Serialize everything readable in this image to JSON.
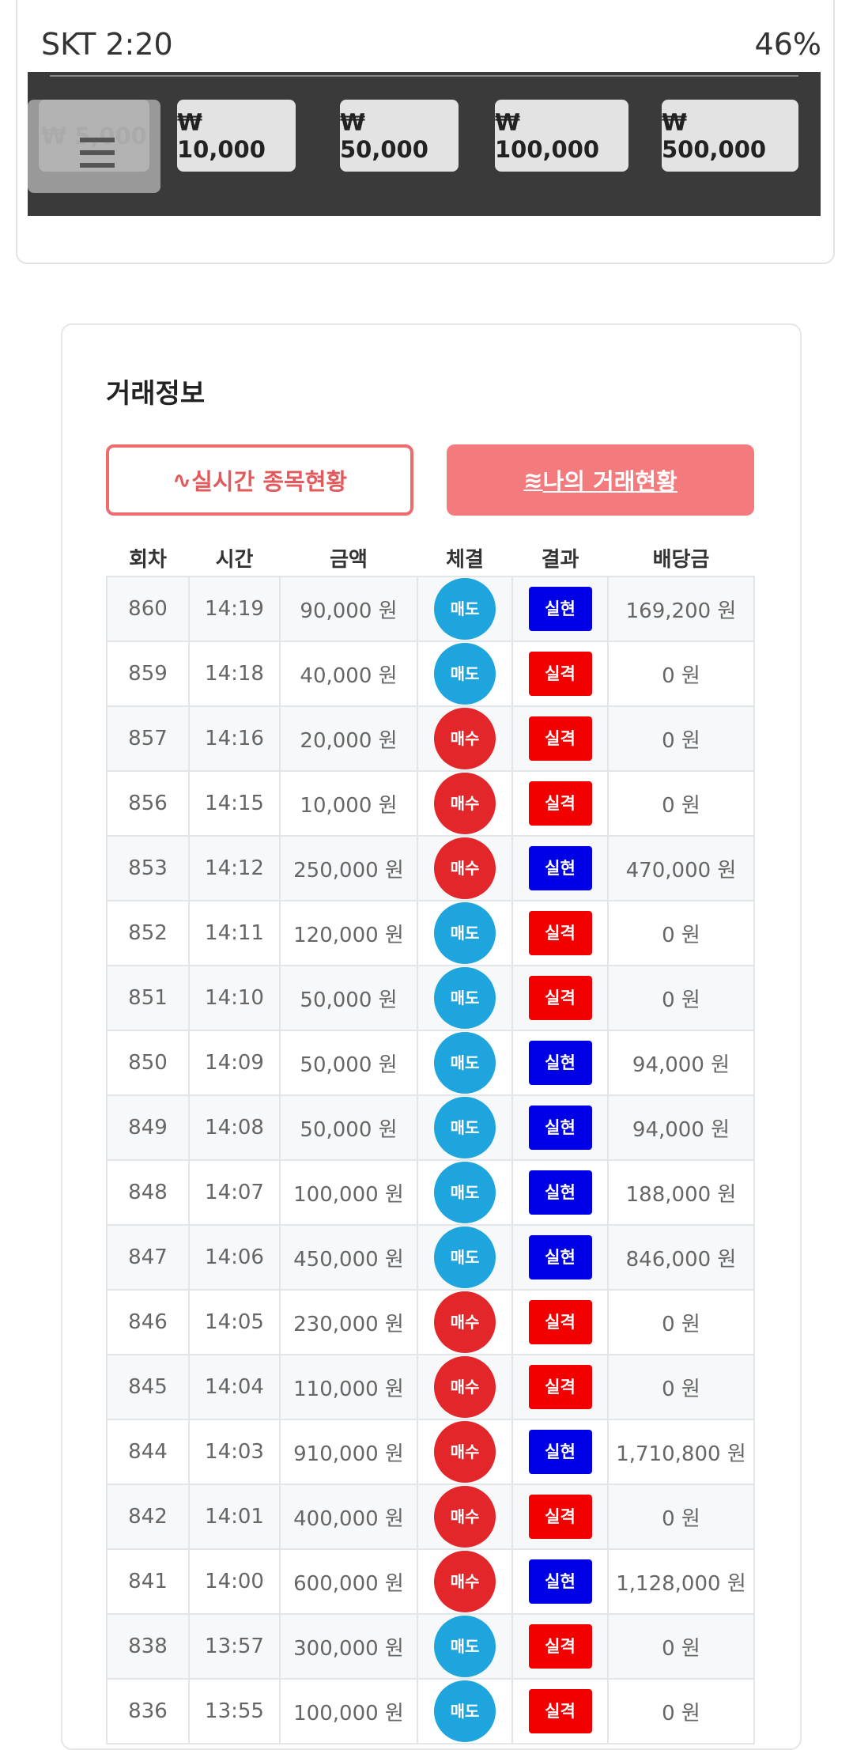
{
  "status_bar": {
    "carrier_time": "SKT 2:20",
    "battery": "46%"
  },
  "amount_buttons": [
    "₩ 5,000",
    "₩ 10,000",
    "₩ 50,000",
    "₩ 100,000",
    "₩ 500,000"
  ],
  "trade_info": {
    "title": "거래정보",
    "tabs": [
      "실시간 종목현황",
      "나의 거래현황"
    ],
    "columns": [
      "회차",
      "시간",
      "금액",
      "체결",
      "결과",
      "배당금"
    ],
    "badge_colors": {
      "매도": "#1ea5dd",
      "매수": "#e2262a",
      "실현": "#0000e6",
      "실격": "#f20000"
    },
    "rows": [
      [
        "860",
        "14:19",
        "90,000 원",
        "매도",
        "실현",
        "169,200 원"
      ],
      [
        "859",
        "14:18",
        "40,000 원",
        "매도",
        "실격",
        "0 원"
      ],
      [
        "857",
        "14:16",
        "20,000 원",
        "매수",
        "실격",
        "0 원"
      ],
      [
        "856",
        "14:15",
        "10,000 원",
        "매수",
        "실격",
        "0 원"
      ],
      [
        "853",
        "14:12",
        "250,000 원",
        "매수",
        "실현",
        "470,000 원"
      ],
      [
        "852",
        "14:11",
        "120,000 원",
        "매도",
        "실격",
        "0 원"
      ],
      [
        "851",
        "14:10",
        "50,000 원",
        "매도",
        "실격",
        "0 원"
      ],
      [
        "850",
        "14:09",
        "50,000 원",
        "매도",
        "실현",
        "94,000 원"
      ],
      [
        "849",
        "14:08",
        "50,000 원",
        "매도",
        "실현",
        "94,000 원"
      ],
      [
        "848",
        "14:07",
        "100,000 원",
        "매도",
        "실현",
        "188,000 원"
      ],
      [
        "847",
        "14:06",
        "450,000 원",
        "매도",
        "실현",
        "846,000 원"
      ],
      [
        "846",
        "14:05",
        "230,000 원",
        "매수",
        "실격",
        "0 원"
      ],
      [
        "845",
        "14:04",
        "110,000 원",
        "매수",
        "실격",
        "0 원"
      ],
      [
        "844",
        "14:03",
        "910,000 원",
        "매수",
        "실현",
        "1,710,800 원"
      ],
      [
        "842",
        "14:01",
        "400,000 원",
        "매수",
        "실격",
        "0 원"
      ],
      [
        "841",
        "14:00",
        "600,000 원",
        "매수",
        "실현",
        "1,128,000 원"
      ],
      [
        "838",
        "13:57",
        "300,000 원",
        "매도",
        "실격",
        "0 원"
      ],
      [
        "836",
        "13:55",
        "100,000 원",
        "매도",
        "실격",
        "0 원"
      ]
    ]
  }
}
